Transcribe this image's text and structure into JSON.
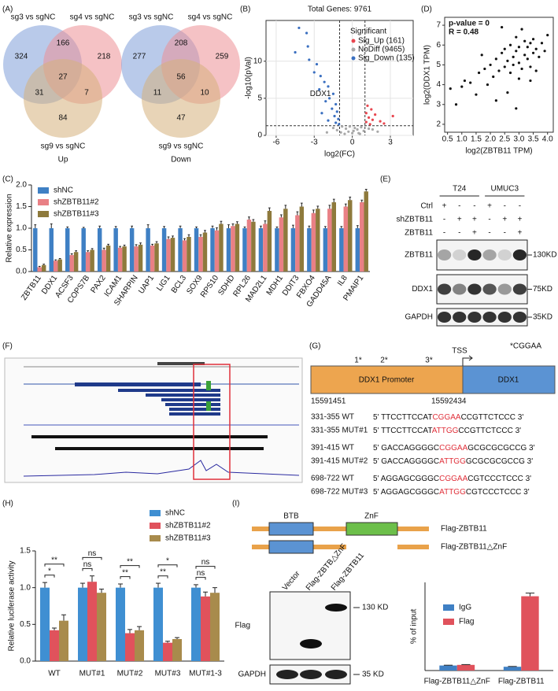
{
  "panel_labels": [
    "(A)",
    "(B)",
    "(D)",
    "(C)",
    "(E)",
    "(F)",
    "(G)",
    "(H)",
    "(I)"
  ],
  "venn": [
    {
      "sets": [
        "sg3 vs sgNC",
        "sg4 vs sgNC",
        "sg9 vs sgNC"
      ],
      "regions": [
        324,
        166,
        218,
        27,
        31,
        7,
        84
      ],
      "label": "Up"
    },
    {
      "sets": [
        "sg3 vs sgNC",
        "sg4 vs sgNC",
        "sg9 vs sgNC"
      ],
      "regions": [
        277,
        208,
        259,
        56,
        11,
        10,
        47
      ],
      "label": "Down"
    }
  ],
  "chart_data": [
    {
      "type": "scatter",
      "title": "Total Genes: 9761",
      "x_label": "log2(FC)",
      "y_label": "-log10(pVal)",
      "legend_title": "Significant",
      "grid": true,
      "xlim": [
        -6.8,
        4.8
      ],
      "xticks": [
        -6,
        -3,
        0,
        3
      ],
      "ylim": [
        0,
        15.5
      ],
      "yticks": [
        0,
        5,
        10
      ],
      "thresholds": {
        "x": [
          -1,
          1
        ],
        "y": 1.3
      },
      "annotations": [
        {
          "text": "DDX1",
          "x": -1.5,
          "y": 5.6
        }
      ],
      "series": [
        {
          "name": "Sig_Up (161)",
          "color": "#e8464f",
          "x": [
            1.2,
            1.5,
            1.1,
            1.8,
            1.3,
            1.6,
            1.1,
            2.2,
            1.4,
            3.2,
            2.5
          ],
          "y": [
            4.0,
            3.5,
            3.0,
            2.8,
            2.4,
            2.1,
            1.8,
            1.9,
            1.5,
            2.6,
            1.6
          ]
        },
        {
          "name": "NoDiff (9465)",
          "color": "#a8a8a8",
          "x": [
            -0.8,
            -0.5,
            0,
            0.4,
            0.7,
            -0.3,
            0.2,
            0.9,
            -1.2,
            1.3,
            -0.6,
            0.5,
            -2,
            2,
            -0.9,
            0.1,
            -0.2,
            0.6,
            -1.5,
            1.6
          ],
          "y": [
            1.2,
            0.9,
            0.3,
            0.8,
            1.1,
            0.5,
            1.0,
            0.6,
            0.7,
            0.9,
            0.2,
            0.3,
            0.4,
            0.5,
            0.4,
            0.6,
            1.2,
            0.2,
            1.0,
            0.8
          ]
        },
        {
          "name": "Sig_Down (135)",
          "color": "#3a6fc0",
          "x": [
            -4.2,
            -3.6,
            -3.5,
            -4.5,
            -3.4,
            -2.8,
            -3.0,
            -2.5,
            -2.2,
            -1.9,
            -2.6,
            -1.5,
            -1.8,
            -2.1,
            -1.3,
            -1.6,
            -1.2,
            -2.4,
            -1.4,
            -1.1,
            -1.9,
            -1.3,
            -1.05
          ],
          "y": [
            14.5,
            13.8,
            12.0,
            11.2,
            10.2,
            9.6,
            8.5,
            8.0,
            7.2,
            6.6,
            6.2,
            5.6,
            5.0,
            4.6,
            4.2,
            3.6,
            3.2,
            3.0,
            2.6,
            2.2,
            2.0,
            1.7,
            1.5
          ]
        }
      ]
    },
    {
      "type": "scatter",
      "x_label": "log2(ZBTB11 TPM)",
      "y_label": "log2(DDX1 TPM)",
      "notes": [
        "p-value = 0",
        "R = 0.48"
      ],
      "color": "#111111",
      "xlim": [
        0.4,
        4.2
      ],
      "xticks": [
        0.5,
        {
          "value": 1,
          "label": "1.0"
        },
        1.5,
        {
          "value": 2,
          "label": "2.0"
        },
        2.5,
        {
          "value": 3,
          "label": "3.0"
        },
        3.5,
        {
          "value": 4,
          "label": "4.0"
        }
      ],
      "ylim": [
        1.6,
        7.4
      ],
      "yticks": [
        2,
        3,
        4,
        5,
        6,
        7
      ],
      "x": [
        0.6,
        0.8,
        1.0,
        1.1,
        1.3,
        1.5,
        1.6,
        1.8,
        1.9,
        2.0,
        2.1,
        2.2,
        2.3,
        2.4,
        2.5,
        2.5,
        2.6,
        2.7,
        2.7,
        2.8,
        2.8,
        2.9,
        2.9,
        3.0,
        3.0,
        3.1,
        3.1,
        3.2,
        3.2,
        3.3,
        3.3,
        3.4,
        3.4,
        3.5,
        3.5,
        3.6,
        3.7,
        3.8,
        3.9,
        4.0,
        2.2,
        2.6,
        3.0,
        3.4,
        1.7,
        2.9,
        3.6,
        2.4
      ],
      "y": [
        3.8,
        3.0,
        3.9,
        4.2,
        4.1,
        3.5,
        4.6,
        4.8,
        4.0,
        5.0,
        4.4,
        5.3,
        4.7,
        5.6,
        4.9,
        5.8,
        5.2,
        4.6,
        6.0,
        5.4,
        5.0,
        5.7,
        6.4,
        5.1,
        5.9,
        6.8,
        4.8,
        5.5,
        6.2,
        5.3,
        5.9,
        4.9,
        6.1,
        5.6,
        6.3,
        5.8,
        5.4,
        6.1,
        5.7,
        6.5,
        3.2,
        3.6,
        4.3,
        4.2,
        5.5,
        2.8,
        4.7,
        6.9
      ]
    },
    {
      "type": "bar",
      "y_label": "Relative expression",
      "ylim": [
        0,
        2
      ],
      "yticks": [
        {
          "value": 0,
          "label": "0.0"
        },
        0.5,
        {
          "value": 1,
          "label": "1.0"
        },
        1.5,
        {
          "value": 2,
          "label": "2.0"
        }
      ],
      "categories": [
        "ZBTB11",
        "DDX1",
        "ACSF3",
        "COPS7B",
        "PAX2",
        "ICAM1",
        "SHARPIN",
        "UAP1",
        "LIG1",
        "BCL3",
        "SOX9",
        "RPS10",
        "SDHD",
        "RPL26",
        "MAD2L1",
        "MDH1",
        "DDIT3",
        "FBXO4",
        "GADD45A",
        "IL8",
        "PMAIP1"
      ],
      "series": [
        {
          "name": "shNC",
          "color": "#3f80c4",
          "values": [
            1,
            1,
            1,
            1,
            1,
            1,
            1,
            1,
            1,
            1,
            1,
            1,
            1,
            1,
            1,
            1,
            1,
            1,
            1,
            1,
            1
          ],
          "errors": [
            0.08,
            0.1,
            0.03,
            0.02,
            0.05,
            0.04,
            0.05,
            0.08,
            0.04,
            0.05,
            0.03,
            0.05,
            0.08,
            0.03,
            0.05,
            0.03,
            0.07,
            0.05,
            0.04,
            0.04,
            0.06
          ]
        },
        {
          "name": "shZBTB11#2",
          "color": "#e98085",
          "values": [
            0.1,
            0.25,
            0.38,
            0.45,
            0.5,
            0.55,
            0.58,
            0.6,
            0.75,
            0.72,
            0.8,
            0.95,
            1.05,
            1.2,
            1.1,
            1.25,
            1.3,
            1.35,
            1.45,
            1.5,
            1.6
          ],
          "errors": [
            0.02,
            0.02,
            0.03,
            0.03,
            0.04,
            0.03,
            0.04,
            0.03,
            0.05,
            0.04,
            0.05,
            0.06,
            0.05,
            0.06,
            0.07,
            0.06,
            0.08,
            0.07,
            0.08,
            0.06,
            0.05
          ]
        },
        {
          "name": "shZBTB11#3",
          "color": "#8e7a3c",
          "values": [
            0.15,
            0.28,
            0.45,
            0.5,
            0.6,
            0.58,
            0.62,
            0.65,
            0.78,
            0.8,
            0.9,
            1.1,
            1.1,
            1.15,
            1.4,
            1.45,
            1.5,
            1.45,
            1.6,
            1.65,
            1.85
          ],
          "errors": [
            0.02,
            0.02,
            0.03,
            0.03,
            0.03,
            0.03,
            0.04,
            0.04,
            0.04,
            0.05,
            0.05,
            0.06,
            0.05,
            0.05,
            0.07,
            0.08,
            0.08,
            0.06,
            0.07,
            0.07,
            0.05
          ]
        }
      ]
    },
    {
      "type": "bar",
      "y_label": "Relative luciferase activity",
      "ylim": [
        0,
        1.5
      ],
      "yticks": [
        {
          "value": 0,
          "label": "0.0"
        },
        0.5,
        {
          "value": 1,
          "label": "1.0"
        },
        1.5
      ],
      "categories": [
        "WT",
        "MUT#1",
        "MUT#2",
        "MUT#3",
        "MUT#1-3"
      ],
      "series": [
        {
          "name": "shNC",
          "color": "#3f8fd2",
          "values": [
            1,
            1,
            1,
            1,
            1
          ],
          "errors": [
            0.07,
            0.06,
            0.05,
            0.06,
            0.04
          ]
        },
        {
          "name": "shZBTB11#2",
          "color": "#e0525c",
          "values": [
            0.42,
            1.08,
            0.38,
            0.25,
            0.88
          ],
          "errors": [
            0.03,
            0.08,
            0.05,
            0.02,
            0.06
          ]
        },
        {
          "name": "shZBTB11#3",
          "color": "#a88b4c",
          "values": [
            0.55,
            0.93,
            0.42,
            0.3,
            0.93
          ],
          "errors": [
            0.08,
            0.05,
            0.05,
            0.02,
            0.07
          ]
        }
      ],
      "significance": [
        [
          "*",
          "**"
        ],
        [
          "ns",
          "ns"
        ],
        [
          "**",
          "**"
        ],
        [
          "**",
          "*"
        ],
        [
          "ns",
          "ns"
        ]
      ]
    },
    {
      "type": "bar",
      "y_label": "% of input",
      "ylim": [
        0,
        1.4
      ],
      "categories": [
        "Flag-ZBTB11△ZnF",
        "Flag-ZBTB11"
      ],
      "series": [
        {
          "name": "IgG",
          "color": "#3f80c4",
          "values": [
            0.08,
            0.06
          ],
          "errors": [
            0.005,
            0.005
          ]
        },
        {
          "name": "Flag",
          "color": "#e0525c",
          "values": [
            0.09,
            1.18
          ],
          "errors": [
            0.005,
            0.05
          ]
        }
      ]
    }
  ],
  "blot_e": {
    "groups": [
      "T24",
      "UMUC3"
    ],
    "conditions": [
      {
        "name": "Ctrl",
        "signs": [
          "+",
          "-",
          "-",
          "+",
          "-",
          "-"
        ]
      },
      {
        "name": "shZBTB11",
        "signs": [
          "-",
          "+",
          "+",
          "-",
          "+",
          "+"
        ]
      },
      {
        "name": "ZBTB11",
        "signs": [
          "-",
          "-",
          "+",
          "-",
          "-",
          "+"
        ]
      }
    ],
    "bands": [
      {
        "name": "ZBTB11",
        "size": "130KD"
      },
      {
        "name": "DDX1",
        "size": "75KD"
      },
      {
        "name": "GAPDH",
        "size": "35KD"
      }
    ]
  },
  "promoter": {
    "motif_legend": "*CGGAA",
    "tss": "TSS",
    "sites": [
      "1*",
      "2*",
      "3*"
    ],
    "promoter_label": "DDX1 Promoter",
    "gene_label": "DDX1",
    "start": "15591451",
    "end": "15592434",
    "rows": [
      {
        "label": "331-355 WT",
        "seq": [
          "5' TTCCTTCCAT",
          "CGGAA",
          "CCGTTCTCCC 3'"
        ]
      },
      {
        "label": "331-355 MUT#1",
        "seq": [
          "5' TTCCTTCCAT",
          "ATTGG",
          "CCGTTCTCCC 3'"
        ]
      },
      {
        "label": "391-415 WT",
        "seq": [
          "5' GACCAGGGGC",
          "CGGAA",
          "GCGCGCGCCG 3'"
        ]
      },
      {
        "label": "391-415 MUT#2",
        "seq": [
          "5' GACCAGGGGC",
          "ATTGG",
          "GCGCGCGCCG 3'"
        ]
      },
      {
        "label": "698-722 WT",
        "seq": [
          "5' AGGAGCGGGC",
          "CGGAA",
          "CGTCCCTCCC 3'"
        ]
      },
      {
        "label": "698-722 MUT#3",
        "seq": [
          "5' AGGAGCGGGC",
          "ATTGG",
          "CGTCCCTCCC 3'"
        ]
      }
    ]
  },
  "constructs": {
    "domains": [
      "BTB",
      "ZnF"
    ],
    "names": [
      "Flag-ZBTB11",
      "Flag-ZBTB11△ZnF"
    ]
  },
  "blot_i": {
    "lanes": [
      "Vector",
      "Flag-ZBTB△ZnF",
      "Flag-ZBTB11"
    ],
    "rows": [
      "Flag",
      "GAPDH"
    ],
    "sizes": [
      "130 KD",
      "35 KD"
    ]
  }
}
